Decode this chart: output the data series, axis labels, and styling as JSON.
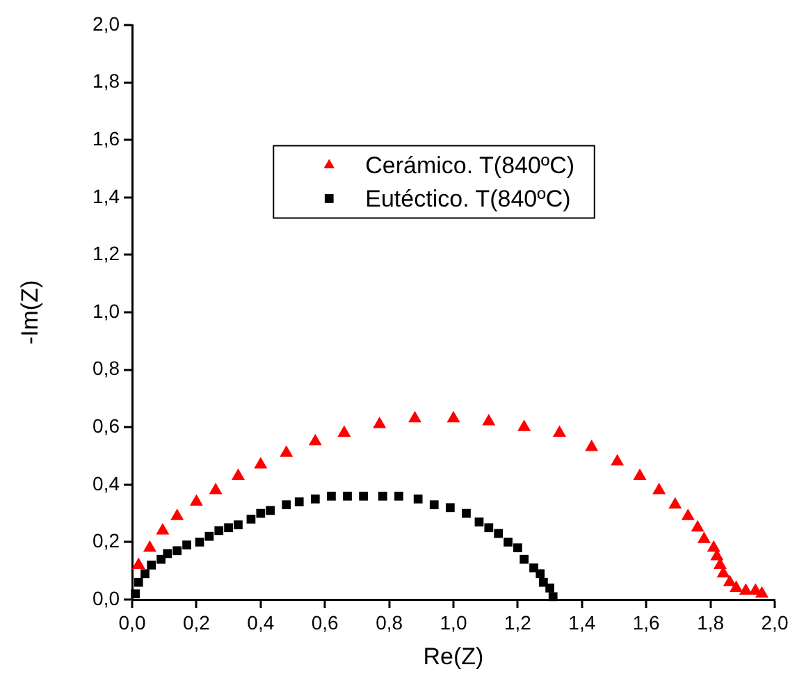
{
  "chart_data": {
    "type": "scatter",
    "xlabel": "Re(Z)",
    "ylabel": "-Im(Z)",
    "legend": "top",
    "grid": false,
    "xlim": [
      0,
      2
    ],
    "ylim": [
      0,
      2
    ],
    "xticks": [
      {
        "value": 0,
        "label": "0,0"
      },
      {
        "value": 0.2,
        "label": "0,2"
      },
      {
        "value": 0.4,
        "label": "0,4"
      },
      {
        "value": 0.6,
        "label": "0,6"
      },
      {
        "value": 0.8,
        "label": "0,8"
      },
      {
        "value": 1,
        "label": "1,0"
      },
      {
        "value": 1.2,
        "label": "1,2"
      },
      {
        "value": 1.4,
        "label": "1,4"
      },
      {
        "value": 1.6,
        "label": "1,6"
      },
      {
        "value": 1.8,
        "label": "1,8"
      },
      {
        "value": 2,
        "label": "2,0"
      }
    ],
    "yticks": [
      {
        "value": 0,
        "label": "0,0"
      },
      {
        "value": 0.2,
        "label": "0,2"
      },
      {
        "value": 0.4,
        "label": "0,4"
      },
      {
        "value": 0.6,
        "label": "0,6"
      },
      {
        "value": 0.8,
        "label": "0,8"
      },
      {
        "value": 1,
        "label": "1,0"
      },
      {
        "value": 1.2,
        "label": "1,2"
      },
      {
        "value": 1.4,
        "label": "1,4"
      },
      {
        "value": 1.6,
        "label": "1,6"
      },
      {
        "value": 1.8,
        "label": "1,8"
      },
      {
        "value": 2,
        "label": "2,0"
      }
    ],
    "series": [
      {
        "name": "Cerámico. T(840ºC)",
        "color": "#ff0000",
        "marker": "triangle",
        "x": [
          0.02,
          0.055,
          0.095,
          0.14,
          0.2,
          0.26,
          0.33,
          0.4,
          0.48,
          0.57,
          0.66,
          0.77,
          0.88,
          1.0,
          1.11,
          1.22,
          1.33,
          1.43,
          1.51,
          1.58,
          1.64,
          1.69,
          1.73,
          1.76,
          1.78,
          1.81,
          1.82,
          1.83,
          1.84,
          1.86,
          1.88,
          1.91,
          1.94,
          1.96
        ],
        "values": [
          0.12,
          0.18,
          0.24,
          0.29,
          0.34,
          0.38,
          0.43,
          0.47,
          0.51,
          0.55,
          0.58,
          0.61,
          0.63,
          0.63,
          0.62,
          0.6,
          0.58,
          0.53,
          0.48,
          0.43,
          0.38,
          0.33,
          0.29,
          0.25,
          0.21,
          0.18,
          0.15,
          0.12,
          0.09,
          0.06,
          0.04,
          0.03,
          0.03,
          0.02
        ]
      },
      {
        "name": "Eutéctico. T(840ºC)",
        "color": "#000000",
        "marker": "square",
        "x": [
          0.01,
          0.02,
          0.04,
          0.06,
          0.09,
          0.11,
          0.14,
          0.17,
          0.21,
          0.24,
          0.27,
          0.3,
          0.33,
          0.37,
          0.4,
          0.43,
          0.48,
          0.52,
          0.57,
          0.62,
          0.67,
          0.72,
          0.78,
          0.83,
          0.89,
          0.94,
          0.99,
          1.04,
          1.08,
          1.11,
          1.14,
          1.17,
          1.2,
          1.22,
          1.25,
          1.27,
          1.28,
          1.3,
          1.31
        ],
        "values": [
          0.02,
          0.06,
          0.09,
          0.12,
          0.14,
          0.16,
          0.17,
          0.19,
          0.2,
          0.22,
          0.24,
          0.25,
          0.26,
          0.28,
          0.3,
          0.31,
          0.33,
          0.34,
          0.35,
          0.36,
          0.36,
          0.36,
          0.36,
          0.36,
          0.35,
          0.33,
          0.32,
          0.3,
          0.27,
          0.25,
          0.23,
          0.2,
          0.18,
          0.14,
          0.11,
          0.09,
          0.06,
          0.04,
          0.01
        ]
      }
    ]
  }
}
